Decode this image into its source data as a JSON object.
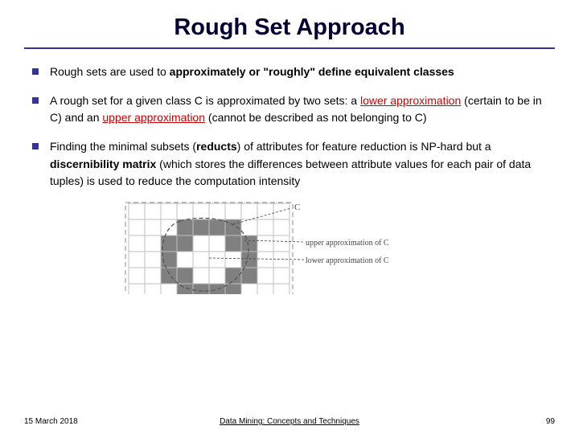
{
  "title": "Rough Set Approach",
  "bullets": [
    {
      "pre": "Rough sets are used to ",
      "bold1": "approximately or \"roughly\" define equivalent classes",
      "post": ""
    },
    {
      "pre": "A rough set for a given class C is approximated by two sets: a ",
      "red1": "lower approximation",
      "mid": " (certain to be in C) and an ",
      "red2": "upper approximation",
      "post": " (cannot be described as not belonging to C)"
    },
    {
      "pre": "Finding the minimal subsets (",
      "bold1": "reducts",
      "mid1": ") of attributes for feature reduction is NP-hard but a ",
      "bold2": "discernibility matrix",
      "post": " (which stores the differences between attribute values for each pair of data tuples) is used to reduce the computation intensity"
    }
  ],
  "diagram": {
    "label_C": "C",
    "label_upper": "upper approximation of C",
    "label_lower": "lower approximation of C",
    "grid_color": "#bfbfbf",
    "region_color": "#808080",
    "dash_color": "#555555",
    "outer_dash": "#888888",
    "text_color": "#444444",
    "bg": "#ffffff"
  },
  "footer": {
    "date": "15 March 2018",
    "center": "Data Mining: Concepts and Techniques",
    "page": "99"
  },
  "colors": {
    "title": "#000033",
    "rule": "#333399",
    "bullet": "#333399",
    "red": "#cc0000"
  }
}
